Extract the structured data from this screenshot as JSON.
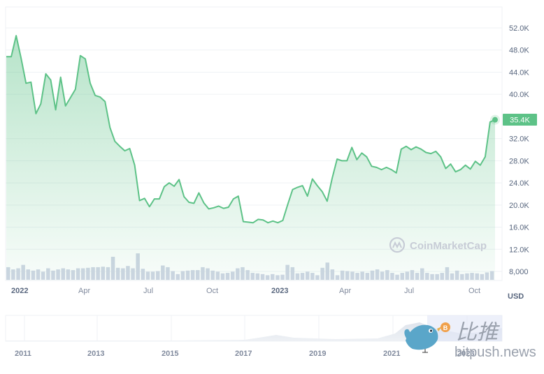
{
  "chart_data": {
    "type": "area",
    "title": "",
    "xlabel": "",
    "ylabel": "",
    "currency_label": "USD",
    "ylim": [
      8000,
      54000
    ],
    "y_ticks": [
      "52.0K",
      "48.0K",
      "44.0K",
      "40.0K",
      "32.0K",
      "28.0K",
      "24.0K",
      "20.0K",
      "16.0K",
      "12.0K",
      "8,000"
    ],
    "y_tick_values": [
      52000,
      48000,
      44000,
      40000,
      32000,
      28000,
      24000,
      20000,
      16000,
      12000,
      8000
    ],
    "x_ticks": [
      {
        "label": "2022",
        "bold": true
      },
      {
        "label": "Apr",
        "bold": false
      },
      {
        "label": "Jul",
        "bold": false
      },
      {
        "label": "Oct",
        "bold": false
      },
      {
        "label": "2023",
        "bold": true
      },
      {
        "label": "Apr",
        "bold": false
      },
      {
        "label": "Jul",
        "bold": false
      },
      {
        "label": "Oct",
        "bold": false
      }
    ],
    "current_price_label": "35.4K",
    "current_price": 35400,
    "grid": true,
    "line_color": "#5dc287",
    "fill_color": "#5dc287",
    "volume_bar_color": "#cfd6e4",
    "series": [
      {
        "name": "Price (USD)",
        "approx_values_weekly": [
          46800,
          46800,
          50600,
          46500,
          42000,
          42200,
          36500,
          38300,
          43700,
          42600,
          37200,
          43100,
          37900,
          39400,
          40900,
          47000,
          46400,
          42000,
          39800,
          39500,
          38700,
          34000,
          31500,
          30600,
          29800,
          30200,
          27200,
          20800,
          21200,
          19700,
          21100,
          21100,
          23300,
          24000,
          23400,
          24600,
          21500,
          20500,
          20300,
          22200,
          20400,
          19300,
          19500,
          19800,
          19400,
          19600,
          21100,
          21600,
          17000,
          16900,
          16800,
          17400,
          17300,
          16800,
          17100,
          16800,
          17200,
          20100,
          22800,
          23200,
          23500,
          21600,
          24700,
          23500,
          22400,
          20700,
          24800,
          28300,
          28000,
          28000,
          30400,
          28200,
          29400,
          28700,
          27000,
          26800,
          26400,
          26800,
          26400,
          25800,
          30100,
          30600,
          30000,
          30500,
          30100,
          29500,
          29300,
          29700,
          28700,
          26600,
          27400,
          26000,
          26400,
          27200,
          26500,
          27900,
          27200,
          28700,
          35000,
          35400
        ]
      },
      {
        "name": "Volume",
        "approx_relative_heights": [
          0.55,
          0.45,
          0.5,
          0.65,
          0.45,
          0.4,
          0.45,
          0.35,
          0.5,
          0.4,
          0.45,
          0.5,
          0.45,
          0.42,
          0.5,
          0.5,
          0.52,
          0.55,
          0.55,
          0.57,
          0.55,
          1.0,
          0.52,
          0.5,
          0.6,
          0.5,
          1.15,
          0.48,
          0.35,
          0.35,
          0.38,
          0.62,
          0.55,
          0.38,
          0.25,
          0.38,
          0.4,
          0.42,
          0.42,
          0.55,
          0.5,
          0.4,
          0.35,
          0.28,
          0.3,
          0.35,
          0.5,
          0.55,
          0.42,
          0.3,
          0.28,
          0.25,
          0.2,
          0.25,
          0.2,
          0.22,
          0.65,
          0.55,
          0.28,
          0.3,
          0.35,
          0.3,
          0.2,
          0.52,
          0.75,
          0.45,
          0.2,
          0.4,
          0.38,
          0.35,
          0.3,
          0.35,
          0.3,
          0.4,
          0.45,
          0.35,
          0.42,
          0.3,
          0.22,
          0.3,
          0.35,
          0.42,
          0.3,
          0.5,
          0.3,
          0.25,
          0.25,
          0.3,
          0.55,
          0.28,
          0.4,
          0.25,
          0.28,
          0.3,
          0.28,
          0.25,
          0.32,
          0.38
        ]
      }
    ],
    "navigator": {
      "x_ticks": [
        "2011",
        "2013",
        "2015",
        "2017",
        "2019",
        "2021",
        "2023"
      ],
      "selected_range": "2022 - 2023"
    }
  },
  "watermark": {
    "text": "CoinMarketCap"
  },
  "overlay_brand": {
    "cn_text": "比推",
    "site_text": "bitpush.news",
    "coin_symbol": "B"
  }
}
